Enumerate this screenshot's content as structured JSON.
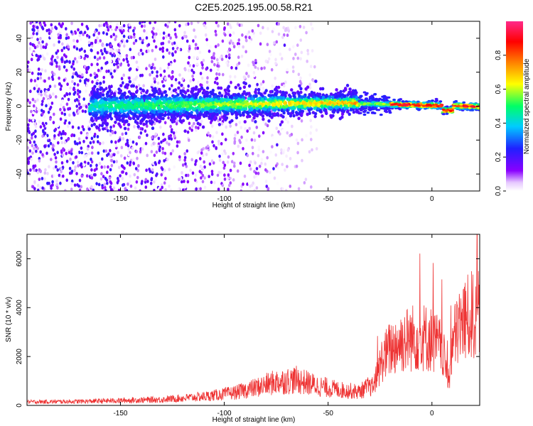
{
  "title": "C2E5.2025.195.00.58.R21",
  "colors": {
    "snr_line": "#ee3333",
    "colormap": [
      "#ffffff",
      "#8a00ff",
      "#2020ff",
      "#00ccff",
      "#00ff66",
      "#ffff00",
      "#ff8800",
      "#ff0000",
      "#ff2a8a"
    ]
  },
  "chart_data": [
    {
      "type": "heatmap",
      "xlabel": "Height of straight line (km)",
      "ylabel": "Frequency (Hz)",
      "xlim": [
        -195,
        23
      ],
      "ylim": [
        -50,
        50
      ],
      "x_ticks": [
        -150,
        -100,
        -50,
        0
      ],
      "x_tick_labels": [
        "-150",
        "-100",
        "-50",
        "0"
      ],
      "y_ticks": [
        -40,
        -20,
        0,
        20,
        40
      ],
      "y_tick_labels": [
        "-40",
        "-20",
        "0",
        "20",
        "40"
      ],
      "colorbar": {
        "label": "Normalized spectral amplitude",
        "range": [
          0,
          1
        ],
        "ticks": [
          0.0,
          0.2,
          0.4,
          0.6,
          0.8
        ],
        "tick_labels": [
          "0.0",
          "0.2",
          "0.4",
          "0.6",
          "0.8"
        ]
      },
      "description_series": [
        {
          "segment": "noise",
          "x_range": [
            -195,
            -120
          ],
          "spread_hz": 50,
          "max_amplitude": 0.15
        },
        {
          "segment": "signal-broad",
          "x_range": [
            -165,
            -35
          ],
          "center_hz": 0,
          "spread_hz": 8,
          "max_amplitude": 0.5
        },
        {
          "segment": "signal-narrow",
          "x_range": [
            -35,
            23
          ],
          "center_hz": 0,
          "spread_hz": 3,
          "max_amplitude": 0.95
        }
      ]
    },
    {
      "type": "line",
      "xlabel": "Height of straight line (km)",
      "ylabel": "SNR (10 * v/v)",
      "xlim": [
        -195,
        23
      ],
      "ylim": [
        0,
        7000
      ],
      "x_ticks": [
        -150,
        -100,
        -50,
        0
      ],
      "x_tick_labels": [
        "-150",
        "-100",
        "-50",
        "0"
      ],
      "y_ticks": [
        0,
        2000,
        4000,
        6000
      ],
      "y_tick_labels": [
        "0",
        "2000",
        "4000",
        "6000"
      ],
      "envelope": {
        "x": [
          -195,
          -170,
          -150,
          -130,
          -110,
          -95,
          -85,
          -75,
          -65,
          -55,
          -45,
          -35,
          -28,
          -24,
          -20,
          -15,
          -10,
          -5,
          0,
          5,
          8,
          10,
          13,
          16,
          20,
          23
        ],
        "y": [
          180,
          200,
          250,
          300,
          450,
          650,
          900,
          1200,
          1300,
          1000,
          800,
          700,
          1100,
          2600,
          3200,
          3600,
          3800,
          3900,
          3700,
          3200,
          1300,
          3500,
          4500,
          4800,
          5100,
          5300
        ]
      }
    }
  ]
}
